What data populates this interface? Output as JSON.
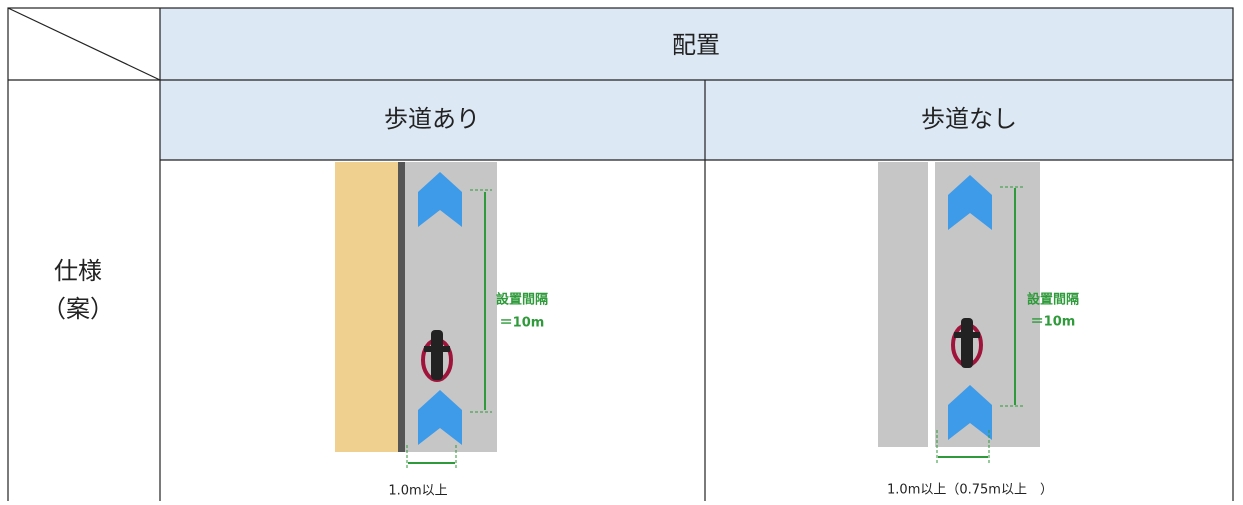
{
  "header": {
    "title": "配置"
  },
  "columns": [
    "歩道あり",
    "歩道なし"
  ],
  "row_label": [
    "仕様",
    "（案）"
  ],
  "diagrams": [
    {
      "interval_label": "設置間隔",
      "interval_value": "＝10m",
      "width_label": "1.0m以上"
    },
    {
      "interval_label": "設置間隔",
      "interval_value": "＝10m",
      "width_label": "1.0m以上（0.75m以上　）"
    }
  ]
}
